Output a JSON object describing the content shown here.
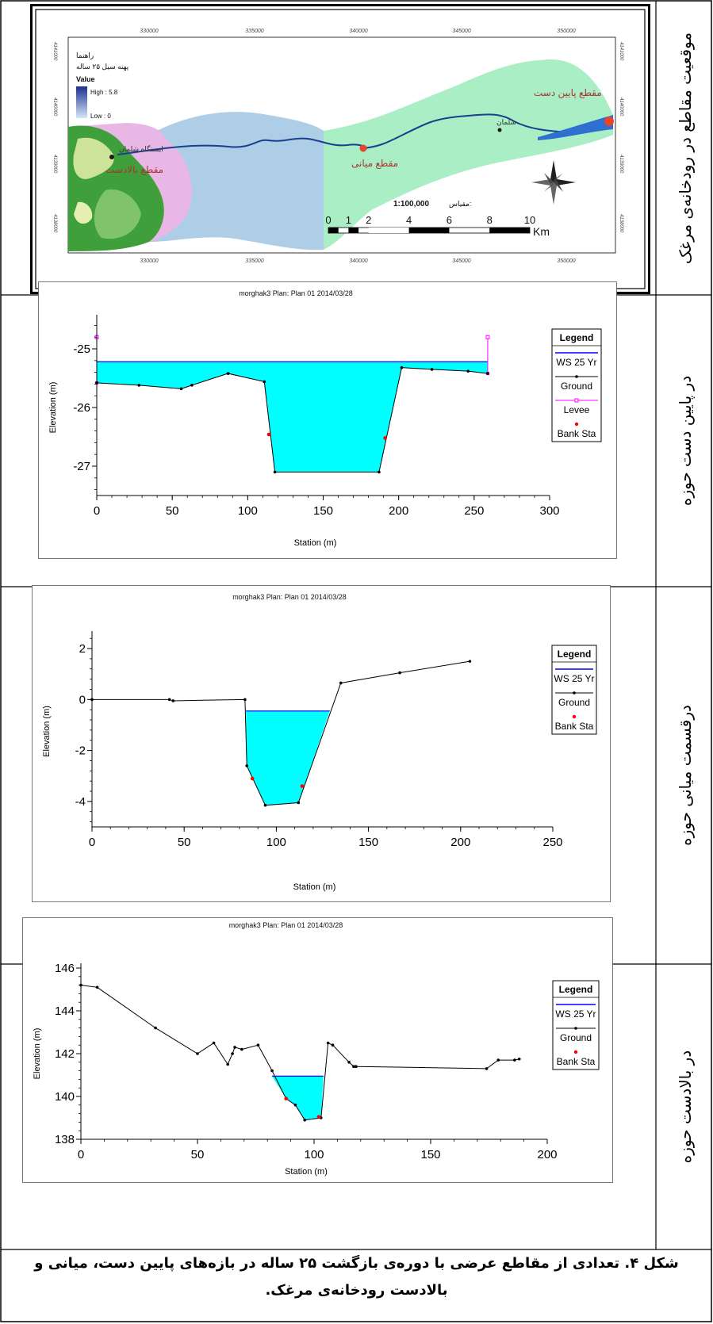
{
  "row_labels": {
    "map": "موقعیت مقاطع در رودخانه‌ی مرغک",
    "downstream": "در پایین دست حوزه",
    "middle": "درقسمت میانی حوزه",
    "upstream": "در بالادست حوزه"
  },
  "caption": {
    "line1": "شکل ۴. تعدادی از مقاطع عرضی با دوره‌ی بازگشت ۲۵ ساله در بازه‌های پایین دست، میانی و",
    "line2": "بالادست رودخانه‌ی مرغک."
  },
  "map": {
    "legend_title": "راهنما",
    "legend_subtitle": "پهنه سیل ۲۵ ساله",
    "value_label": "Value",
    "high_label": "High : 5.8",
    "low_label": "Low : 0",
    "labels": {
      "downstream_section": "مقطع پایین دست",
      "middle_section": "مقطع میانی",
      "upstream_section": "مقطع بالادست",
      "station": "ایستگاه شلمان",
      "station2": "شلمان"
    },
    "scale_text": "1:100,000",
    "scale_prefix": "مقیاس:",
    "scale_ticks": [
      "0",
      "1",
      "2",
      "4",
      "6",
      "8",
      "10"
    ],
    "scale_unit": "Km",
    "top_ticks": [
      "330000",
      "335000",
      "340000",
      "345000",
      "350000"
    ],
    "bottom_ticks": [
      "330000",
      "335000",
      "340000",
      "345000",
      "350000"
    ],
    "side_ticks": [
      "4141000",
      "4140000",
      "4139000",
      "4138000"
    ],
    "colors": {
      "flood_area": "#aecde6",
      "basin_area": "#a9eec4",
      "river": "#1a3f8f"
    }
  },
  "chart_data": [
    {
      "type": "line",
      "title": "morghak3    Plan: Plan 01   2014/03/28",
      "xlabel": "Station (m)",
      "ylabel": "Elevation (m)",
      "xlim": [
        0,
        300
      ],
      "ylim": [
        -27.5,
        -24.5
      ],
      "xticks": [
        "0",
        "50",
        "100",
        "150",
        "200",
        "250",
        "300"
      ],
      "yticks": [
        "-25",
        "-26",
        "-27"
      ],
      "legend": {
        "title": "Legend",
        "items": [
          "WS 25 Yr",
          "Ground",
          "Levee",
          "Bank Sta"
        ],
        "position": "right"
      },
      "series": [
        {
          "name": "Ground",
          "x": [
            0,
            28,
            56,
            63,
            87,
            111,
            118,
            187,
            202,
            222,
            246,
            259
          ],
          "y": [
            -25.58,
            -25.62,
            -25.68,
            -25.62,
            -25.42,
            -25.56,
            -27.1,
            -27.1,
            -25.32,
            -25.35,
            -25.38,
            -25.42
          ]
        },
        {
          "name": "WS 25 Yr",
          "x": [
            0,
            259
          ],
          "y": [
            -25.22,
            -25.22
          ]
        },
        {
          "name": "Levee",
          "x": [
            0,
            259
          ],
          "y": [
            -24.8,
            -24.8
          ]
        },
        {
          "name": "Bank Sta",
          "x": [
            114,
            191
          ],
          "y": [
            -26.46,
            -26.52
          ]
        }
      ],
      "colors": {
        "water": "#00ffff",
        "ws": "#0000ff",
        "levee": "#ff00ff",
        "bank": "#ff0000"
      }
    },
    {
      "type": "line",
      "title": "morghak3    Plan: Plan 01   2014/03/28",
      "xlabel": "Station (m)",
      "ylabel": "Elevation (m)",
      "xlim": [
        0,
        250
      ],
      "ylim": [
        -5,
        2.5
      ],
      "xticks": [
        "0",
        "50",
        "100",
        "150",
        "200",
        "250"
      ],
      "yticks": [
        "2",
        "0",
        "-2",
        "-4"
      ],
      "legend": {
        "title": "Legend",
        "items": [
          "WS 25 Yr",
          "Ground",
          "Bank Sta"
        ],
        "position": "right"
      },
      "series": [
        {
          "name": "Ground",
          "x": [
            0,
            42,
            44,
            83,
            84,
            94,
            112,
            135,
            167,
            205
          ],
          "y": [
            0,
            0,
            -0.05,
            0,
            -2.6,
            -4.15,
            -4.05,
            0.65,
            1.05,
            1.5
          ]
        },
        {
          "name": "WS 25 Yr",
          "x": [
            83.5,
            129
          ],
          "y": [
            -0.45,
            -0.45
          ]
        },
        {
          "name": "Bank Sta",
          "x": [
            87,
            114
          ],
          "y": [
            -3.1,
            -3.4
          ]
        }
      ],
      "colors": {
        "water": "#00ffff",
        "ws": "#0000ff",
        "bank": "#ff0000"
      }
    },
    {
      "type": "line",
      "title": "morghak3    Plan: Plan 01   2014/03/28",
      "xlabel": "Station (m)",
      "ylabel": "Elevation (m)",
      "xlim": [
        0,
        200
      ],
      "ylim": [
        138,
        146
      ],
      "xticks": [
        "0",
        "50",
        "100",
        "150",
        "200"
      ],
      "yticks": [
        "146",
        "144",
        "142",
        "140",
        "138"
      ],
      "legend": {
        "title": "Legend",
        "items": [
          "WS 25 Yr",
          "Ground",
          "Bank Sta"
        ],
        "position": "right"
      },
      "series": [
        {
          "name": "Ground",
          "x": [
            0,
            7,
            32,
            50,
            57,
            63,
            65,
            66,
            69,
            76,
            82,
            88,
            92,
            96,
            103,
            106,
            108,
            115,
            117,
            118,
            174,
            179,
            186,
            188
          ],
          "y": [
            145.2,
            145.1,
            143.2,
            142.0,
            142.5,
            141.5,
            142.0,
            142.3,
            142.2,
            142.4,
            141.2,
            139.9,
            139.6,
            138.9,
            139.0,
            142.5,
            142.4,
            141.6,
            141.4,
            141.4,
            141.3,
            141.7,
            141.7,
            141.75
          ]
        },
        {
          "name": "WS 25 Yr",
          "x": [
            82,
            104
          ],
          "y": [
            140.95,
            140.95
          ]
        },
        {
          "name": "Bank Sta",
          "x": [
            88,
            102
          ],
          "y": [
            139.9,
            139.05
          ]
        }
      ],
      "colors": {
        "water": "#00ffff",
        "ws": "#0000ff",
        "bank": "#ff0000"
      }
    }
  ]
}
